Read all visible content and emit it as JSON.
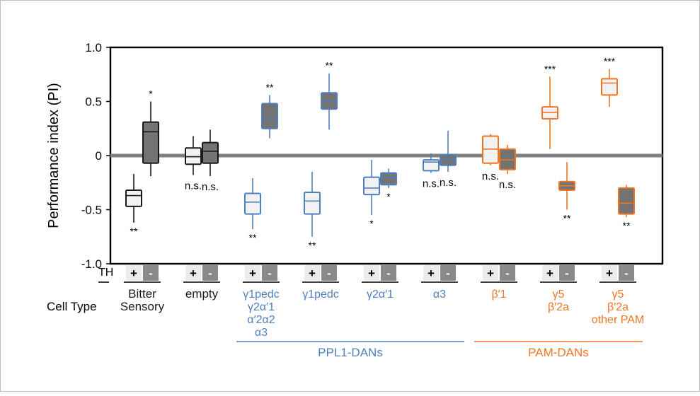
{
  "chart_data": {
    "type": "box",
    "ylabel": "Performance index (PI)",
    "ylim": [
      -1.0,
      1.0
    ],
    "yticks": [
      "1.0",
      "0.5",
      "0",
      "-0.5",
      "-1.0"
    ],
    "ytick_values": [
      1.0,
      0.5,
      0,
      -0.5,
      -1.0
    ],
    "zero_line": true,
    "th_row_label": "TH",
    "cell_type_label": "Cell Type",
    "colors": {
      "black": "#1a1a1a",
      "blue": "#4f7fbf",
      "orange": "#ee7624",
      "plus_fill": "#f2f2f2",
      "minus_fill": "#737373",
      "zero_line": "#7f7f7f"
    },
    "groups": [
      {
        "color": "black",
        "labels": [
          "Bitter",
          "Sensory"
        ],
        "boxes": [
          {
            "th": "+",
            "min": -0.62,
            "q1": -0.47,
            "median": -0.37,
            "q3": -0.32,
            "max": -0.17,
            "sig": "**",
            "sig_pos": "below"
          },
          {
            "th": "-",
            "min": -0.19,
            "q1": -0.07,
            "median": 0.22,
            "q3": 0.31,
            "max": 0.5,
            "sig": "*",
            "sig_pos": "above"
          }
        ]
      },
      {
        "color": "black",
        "labels": [
          "empty"
        ],
        "boxes": [
          {
            "th": "+",
            "min": -0.18,
            "q1": -0.08,
            "median": -0.01,
            "q3": 0.07,
            "max": 0.18,
            "sig": "n.s.",
            "sig_pos": "below"
          },
          {
            "th": "-",
            "min": -0.19,
            "q1": -0.07,
            "median": 0.04,
            "q3": 0.12,
            "max": 0.24,
            "sig": "n.s.",
            "sig_pos": "below"
          }
        ]
      },
      {
        "color": "blue",
        "labels": [
          "γ1pedc",
          "γ2α′1",
          "α′2α2",
          "α3"
        ],
        "boxes": [
          {
            "th": "+",
            "min": -0.68,
            "q1": -0.54,
            "median": -0.43,
            "q3": -0.35,
            "max": -0.21,
            "sig": "**",
            "sig_pos": "below"
          },
          {
            "th": "-",
            "min": 0.16,
            "q1": 0.25,
            "median": 0.33,
            "q3": 0.48,
            "max": 0.56,
            "sig": "**",
            "sig_pos": "above"
          }
        ]
      },
      {
        "color": "blue",
        "labels": [
          "γ1pedc"
        ],
        "boxes": [
          {
            "th": "+",
            "min": -0.75,
            "q1": -0.54,
            "median": -0.42,
            "q3": -0.34,
            "max": -0.15,
            "sig": "**",
            "sig_pos": "below"
          },
          {
            "th": "-",
            "min": 0.24,
            "q1": 0.43,
            "median": 0.5,
            "q3": 0.58,
            "max": 0.76,
            "sig": "**",
            "sig_pos": "above"
          }
        ]
      },
      {
        "color": "blue",
        "labels": [
          "γ2α′1"
        ],
        "boxes": [
          {
            "th": "+",
            "min": -0.55,
            "q1": -0.36,
            "median": -0.3,
            "q3": -0.2,
            "max": -0.04,
            "sig": "*",
            "sig_pos": "below"
          },
          {
            "th": "-",
            "min": -0.3,
            "q1": -0.27,
            "median": -0.2,
            "q3": -0.16,
            "max": -0.12,
            "sig": "*",
            "sig_pos": "below"
          }
        ]
      },
      {
        "color": "blue",
        "labels": [
          "α3"
        ],
        "boxes": [
          {
            "th": "+",
            "min": -0.16,
            "q1": -0.14,
            "median": -0.06,
            "q3": -0.04,
            "max": 0.02,
            "sig": "n.s.",
            "sig_pos": "below"
          },
          {
            "th": "-",
            "min": -0.15,
            "q1": -0.09,
            "median": -0.04,
            "q3": 0.01,
            "max": 0.23,
            "sig": "n.s.",
            "sig_pos": "below"
          }
        ]
      },
      {
        "color": "orange",
        "labels": [
          "β′1"
        ],
        "boxes": [
          {
            "th": "+",
            "min": -0.09,
            "q1": -0.07,
            "median": 0.06,
            "q3": 0.18,
            "max": 0.2,
            "sig": "n.s.",
            "sig_pos": "below"
          },
          {
            "th": "-",
            "min": -0.17,
            "q1": -0.13,
            "median": -0.04,
            "q3": 0.06,
            "max": 0.1,
            "sig": "n.s.",
            "sig_pos": "below"
          }
        ]
      },
      {
        "color": "orange",
        "labels": [
          "γ5",
          "β′2a"
        ],
        "boxes": [
          {
            "th": "+",
            "min": 0.06,
            "q1": 0.34,
            "median": 0.4,
            "q3": 0.45,
            "max": 0.73,
            "sig": "***",
            "sig_pos": "above"
          },
          {
            "th": "-",
            "min": -0.5,
            "q1": -0.32,
            "median": -0.28,
            "q3": -0.24,
            "max": -0.06,
            "sig": "**",
            "sig_pos": "below"
          }
        ]
      },
      {
        "color": "orange",
        "labels": [
          "γ5",
          "β′2a",
          "other PAM"
        ],
        "boxes": [
          {
            "th": "+",
            "min": 0.45,
            "q1": 0.56,
            "median": 0.67,
            "q3": 0.71,
            "max": 0.8,
            "sig": "***",
            "sig_pos": "above"
          },
          {
            "th": "-",
            "min": -0.57,
            "q1": -0.54,
            "median": -0.44,
            "q3": -0.3,
            "max": -0.27,
            "sig": "**",
            "sig_pos": "below"
          }
        ]
      }
    ],
    "brackets": [
      {
        "label": "PPL1-DANs",
        "color": "blue",
        "from_group": 2,
        "to_group": 5
      },
      {
        "label": "PAM-DANs",
        "color": "orange",
        "from_group": 6,
        "to_group": 8
      }
    ]
  }
}
